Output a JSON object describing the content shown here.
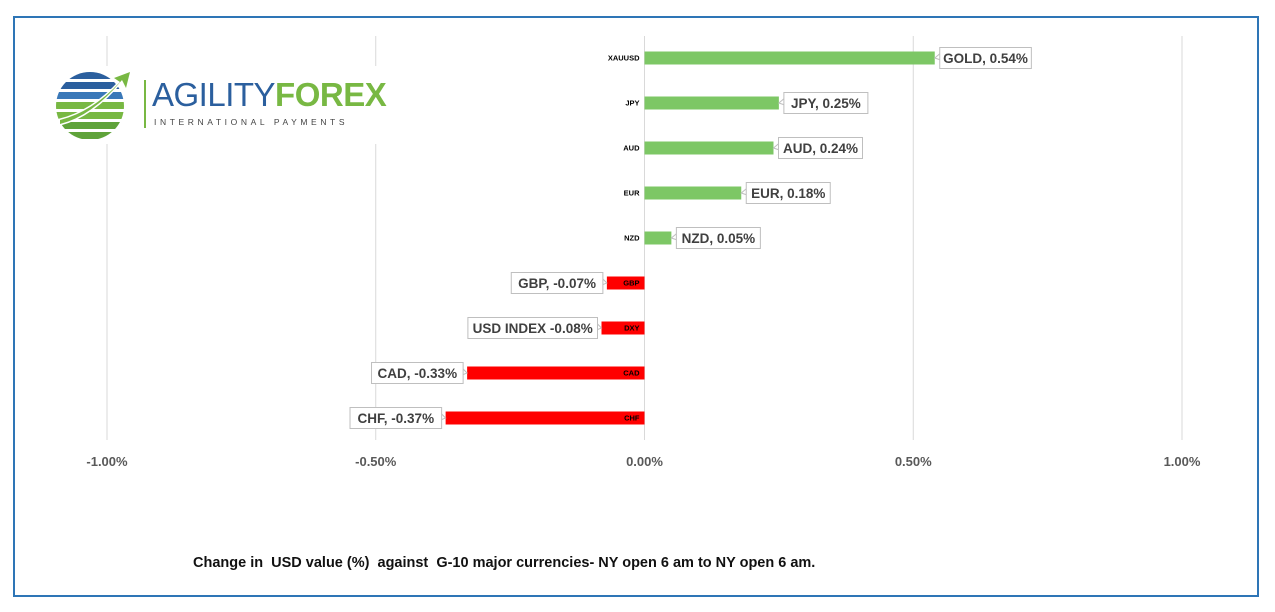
{
  "logo": {
    "brand_part1": "AGILITY",
    "brand_part2": "FOREX",
    "tagline": "INTERNATIONAL PAYMENTS",
    "icon": "globe-swoosh-icon"
  },
  "caption": "Change in  USD value (%)  against  G-10 major currencies- NY open 6 am to NY open 6 am.",
  "colors": {
    "positive": "#7dc765",
    "negative": "#ff0000",
    "frame": "#2e75b6",
    "grid": "#d9d9d9"
  },
  "chart_data": {
    "type": "bar",
    "orientation": "horizontal",
    "categories": [
      "XAUUSD",
      "JPY",
      "AUD",
      "EUR",
      "NZD",
      "GBP",
      "DXY",
      "CAD",
      "CHF"
    ],
    "values": [
      0.54,
      0.25,
      0.24,
      0.18,
      0.05,
      -0.07,
      -0.08,
      -0.33,
      -0.37
    ],
    "data_labels": [
      "GOLD, 0.54%",
      "JPY, 0.25%",
      "AUD, 0.24%",
      "EUR, 0.18%",
      "NZD, 0.05%",
      "GBP, -0.07%",
      "USD INDEX -0.08%",
      "CAD, -0.33%",
      "CHF, -0.37%"
    ],
    "x_ticks": [
      -1.0,
      -0.5,
      0.0,
      0.5,
      1.0
    ],
    "x_tick_labels": [
      "-1.00%",
      "-0.50%",
      "0.00%",
      "0.50%",
      "1.00%"
    ],
    "xlim": [
      -1.0,
      1.0
    ],
    "grid": true,
    "legend": "none"
  }
}
